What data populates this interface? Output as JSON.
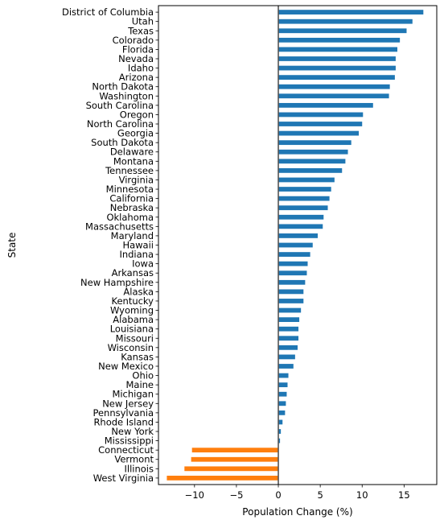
{
  "chart_data": {
    "type": "bar",
    "orientation": "horizontal",
    "xlabel": "Population Change (%)",
    "ylabel": "State",
    "xlim": [
      -14.3,
      18.9
    ],
    "xticks": [
      {
        "value": -10,
        "label": "−10"
      },
      {
        "value": -5,
        "label": "−5"
      },
      {
        "value": 0,
        "label": "0"
      },
      {
        "value": 5,
        "label": "5"
      },
      {
        "value": 10,
        "label": "10"
      },
      {
        "value": 15,
        "label": "15"
      }
    ],
    "grid": false,
    "colors": {
      "positive": "#1f77b4",
      "negative": "#ff7f0e",
      "zero_line": "#555555"
    },
    "categories": [
      "District of Columbia",
      "Utah",
      "Texas",
      "Colorado",
      "Florida",
      "Nevada",
      "Idaho",
      "Arizona",
      "North Dakota",
      "Washington",
      "South Carolina",
      "Oregon",
      "North Carolina",
      "Georgia",
      "South Dakota",
      "Delaware",
      "Montana",
      "Tennessee",
      "Virginia",
      "Minnesota",
      "California",
      "Nebraska",
      "Oklahoma",
      "Massachusetts",
      "Maryland",
      "Hawaii",
      "Indiana",
      "Iowa",
      "Arkansas",
      "New Hampshire",
      "Alaska",
      "Kentucky",
      "Wyoming",
      "Alabama",
      "Louisiana",
      "Missouri",
      "Wisconsin",
      "Kansas",
      "New Mexico",
      "Ohio",
      "Maine",
      "Michigan",
      "New Jersey",
      "Pennsylvania",
      "Rhode Island",
      "New York",
      "Mississippi",
      "Connecticut",
      "Vermont",
      "Illinois",
      "West Virginia"
    ],
    "values": [
      17.3,
      16.0,
      15.3,
      14.5,
      14.2,
      14.0,
      14.0,
      13.9,
      13.3,
      13.2,
      11.3,
      10.1,
      10.0,
      9.6,
      8.7,
      8.3,
      8.0,
      7.6,
      6.7,
      6.3,
      6.1,
      5.9,
      5.4,
      5.3,
      4.7,
      4.1,
      3.8,
      3.5,
      3.4,
      3.2,
      3.0,
      3.0,
      2.7,
      2.5,
      2.4,
      2.4,
      2.3,
      2.0,
      1.8,
      1.2,
      1.1,
      1.0,
      0.9,
      0.8,
      0.5,
      0.3,
      0.2,
      -10.3,
      -10.4,
      -11.2,
      -13.3
    ]
  }
}
